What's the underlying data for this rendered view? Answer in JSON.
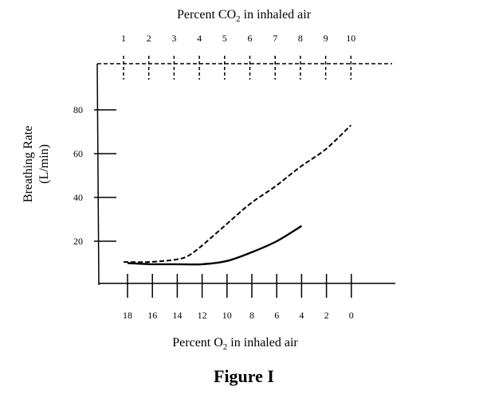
{
  "chart_data": {
    "type": "line",
    "caption": "Figure I",
    "top_axis": {
      "label_prefix": "Percent CO",
      "label_sub": "2",
      "label_suffix": " in inhaled air",
      "ticks": [
        1,
        2,
        3,
        4,
        5,
        6,
        7,
        8,
        9,
        10
      ],
      "tick_labels": [
        "1",
        "2",
        "3",
        "4",
        "5",
        "6",
        "7",
        "8",
        "9",
        "10"
      ],
      "style": "dashed"
    },
    "bottom_axis": {
      "label_prefix": "Percent O",
      "label_sub": "2",
      "label_suffix": " in inhaled air",
      "ticks": [
        18,
        16,
        14,
        12,
        10,
        8,
        6,
        4,
        2,
        0
      ],
      "tick_labels": [
        "18",
        "16",
        "14",
        "12",
        "10",
        "8",
        "6",
        "4",
        "2",
        "0"
      ],
      "reversed": true,
      "style": "solid"
    },
    "y_axis": {
      "label_line1": "Breathing Rate",
      "label_line2": "(L/min)",
      "ticks": [
        20,
        40,
        60,
        80
      ],
      "tick_labels": [
        "20",
        "40",
        "60",
        "80"
      ]
    },
    "series": [
      {
        "axis": "top",
        "style": "dashed",
        "points": [
          [
            1,
            10.5
          ],
          [
            2,
            10.5
          ],
          [
            3,
            11.5
          ],
          [
            3.5,
            13
          ],
          [
            4,
            17
          ],
          [
            5,
            27
          ],
          [
            6,
            37
          ],
          [
            7,
            45
          ],
          [
            8,
            54
          ],
          [
            9,
            62
          ],
          [
            10,
            73
          ]
        ]
      },
      {
        "axis": "bottom",
        "style": "solid",
        "points": [
          [
            18,
            10
          ],
          [
            16,
            9.5
          ],
          [
            14,
            9.5
          ],
          [
            12,
            9.5
          ],
          [
            10,
            11
          ],
          [
            8,
            15
          ],
          [
            6,
            20
          ],
          [
            4,
            27
          ]
        ]
      }
    ]
  }
}
